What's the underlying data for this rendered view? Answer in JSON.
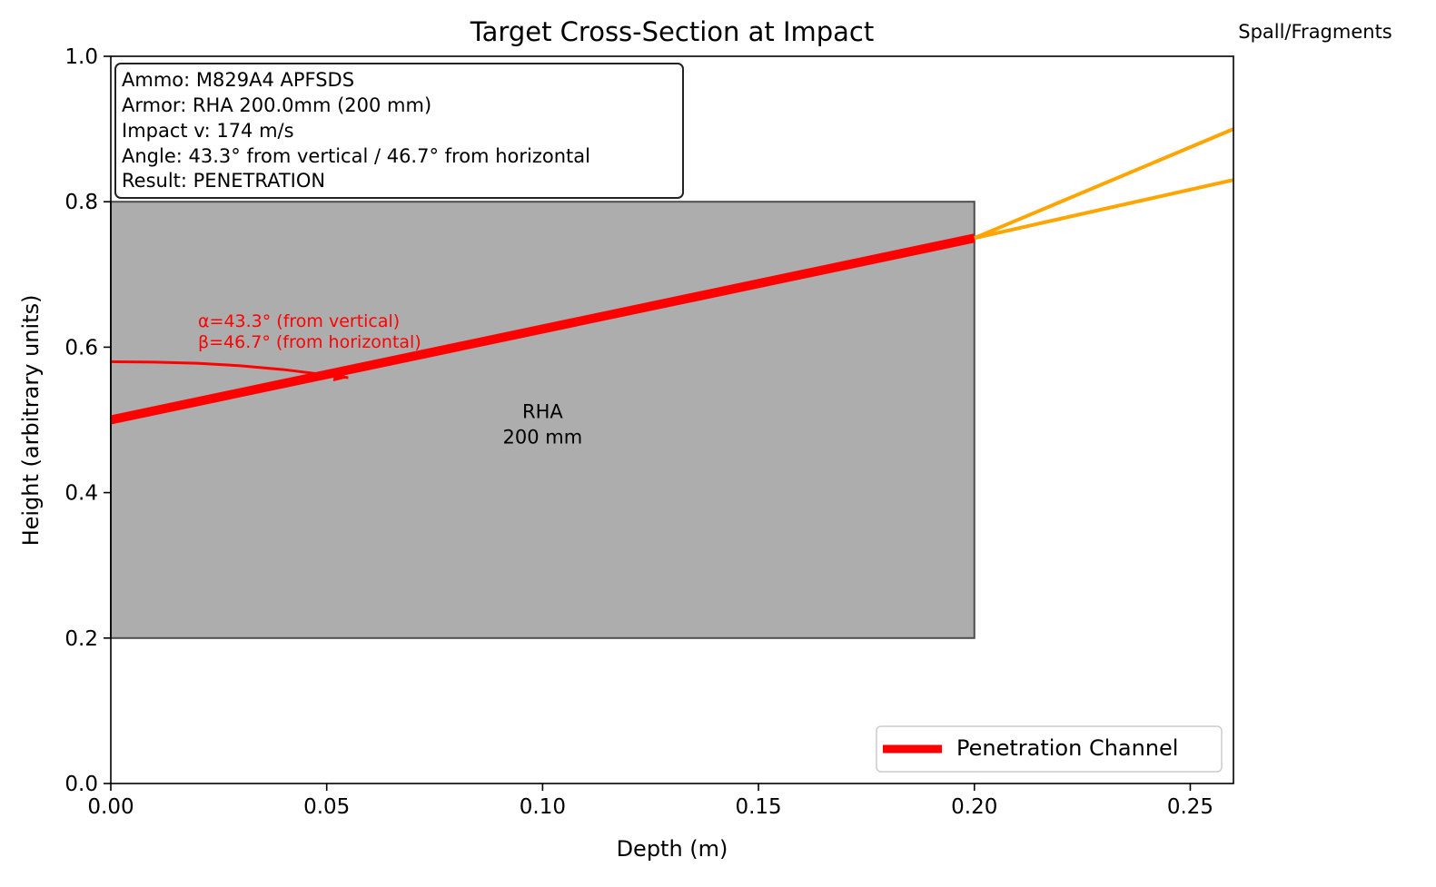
{
  "chart_data": {
    "type": "line",
    "title": "Target Cross-Section at Impact",
    "xlabel": "Depth (m)",
    "ylabel": "Height (arbitrary units)",
    "xlim": [
      0,
      0.26
    ],
    "ylim": [
      0,
      1.0
    ],
    "xticks": [
      0.0,
      0.05,
      0.1,
      0.15,
      0.2,
      0.25
    ],
    "xtick_labels": [
      "0.00",
      "0.05",
      "0.10",
      "0.15",
      "0.20",
      "0.25"
    ],
    "yticks": [
      0.0,
      0.2,
      0.4,
      0.6,
      0.8,
      1.0
    ],
    "ytick_labels": [
      "0.0",
      "0.2",
      "0.4",
      "0.6",
      "0.8",
      "1.0"
    ],
    "grid": false,
    "legend_position": "lower-right",
    "armor_block": {
      "x": [
        0.0,
        0.2
      ],
      "y": [
        0.2,
        0.8
      ],
      "label_line1": "RHA",
      "label_line2": "200 mm",
      "color": "#adadad"
    },
    "series": [
      {
        "name": "Penetration Channel",
        "color": "#ff0000",
        "x": [
          0.0,
          0.2
        ],
        "y": [
          0.5,
          0.75
        ]
      }
    ],
    "spall_lines": [
      {
        "x": [
          0.2,
          0.26
        ],
        "y": [
          0.75,
          0.9
        ],
        "color": "#ffa500"
      },
      {
        "x": [
          0.2,
          0.26
        ],
        "y": [
          0.75,
          0.83
        ],
        "color": "#ffa500"
      }
    ],
    "spall_label": "Spall/Fragments",
    "angle_arc": {
      "x": [
        0.0,
        0.01,
        0.02,
        0.03,
        0.04,
        0.05,
        0.055
      ],
      "y": [
        0.58,
        0.5795,
        0.5778,
        0.5745,
        0.5692,
        0.5618,
        0.558
      ],
      "color": "#ff0000"
    },
    "angle_label_alpha": "α=43.3° (from vertical)",
    "angle_label_beta": "β=46.7° (from horizontal)",
    "info_box": [
      "Ammo: M829A4 APFSDS",
      "Armor: RHA 200.0mm (200 mm)",
      "Impact v: 174 m/s",
      "Angle: 43.3° from vertical / 46.7° from horizontal",
      "Result: PENETRATION"
    ]
  }
}
